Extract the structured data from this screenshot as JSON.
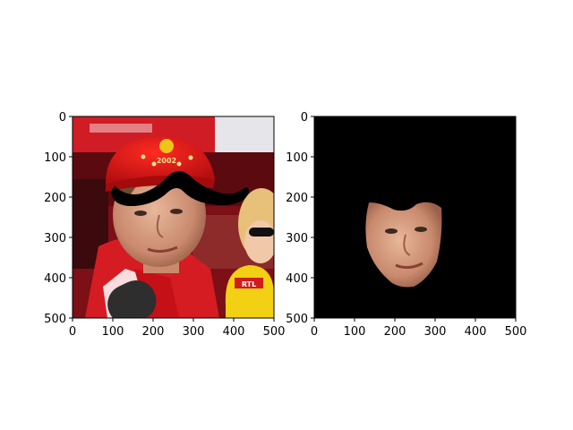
{
  "figure": {
    "background": "#ffffff",
    "axes": [
      {
        "name": "left",
        "image": "face photo with overlaid black mustache",
        "xticks": [
          "0",
          "100",
          "200",
          "300",
          "400",
          "500"
        ],
        "yticks": [
          "0",
          "100",
          "200",
          "300",
          "400",
          "500"
        ],
        "xlim": [
          0,
          500
        ],
        "ylim": [
          500,
          0
        ]
      },
      {
        "name": "right",
        "image": "masked face region on black background",
        "xticks": [
          "0",
          "100",
          "200",
          "300",
          "400",
          "500"
        ],
        "yticks": [
          "0",
          "100",
          "200",
          "300",
          "400",
          "500"
        ],
        "xlim": [
          0,
          500
        ],
        "ylim": [
          500,
          0
        ]
      }
    ],
    "overlay": {
      "mustache_color": "#000000"
    },
    "photo_text": [
      "2002",
      "RTL"
    ]
  }
}
